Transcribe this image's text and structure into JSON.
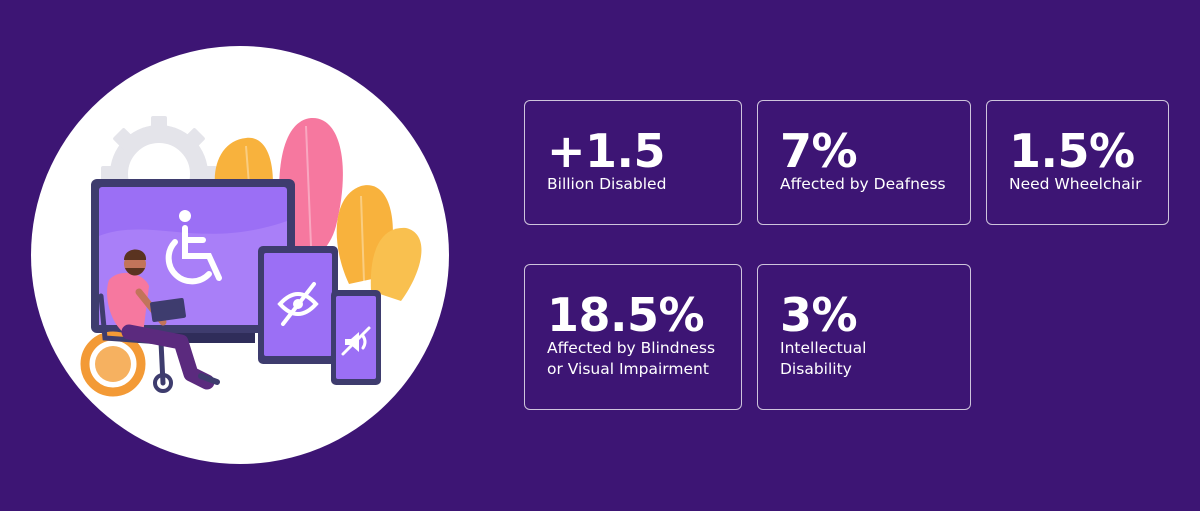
{
  "stats": [
    {
      "value": "+1.5",
      "caption_lines": [
        "Billion Disabled"
      ]
    },
    {
      "value": "7%",
      "caption_lines": [
        "Affected by Deafness"
      ]
    },
    {
      "value": "1.5%",
      "caption_lines": [
        "Need Wheelchair"
      ]
    },
    {
      "value": "18.5%",
      "caption_lines": [
        "Affected by Blindness",
        "or Visual Impairment"
      ]
    },
    {
      "value": "3%",
      "caption_lines": [
        "Intellectual",
        "Disability"
      ]
    }
  ],
  "illustration": {
    "icons": [
      "wheelchair-icon",
      "eye-slash-icon",
      "speaker-mute-icon",
      "gear-icon"
    ]
  },
  "colors": {
    "background": "#3d1574",
    "card_border": "#ffffff",
    "text": "#ffffff",
    "screen_purple": "#9b6ff5",
    "device_frame": "#3e3c6e"
  }
}
